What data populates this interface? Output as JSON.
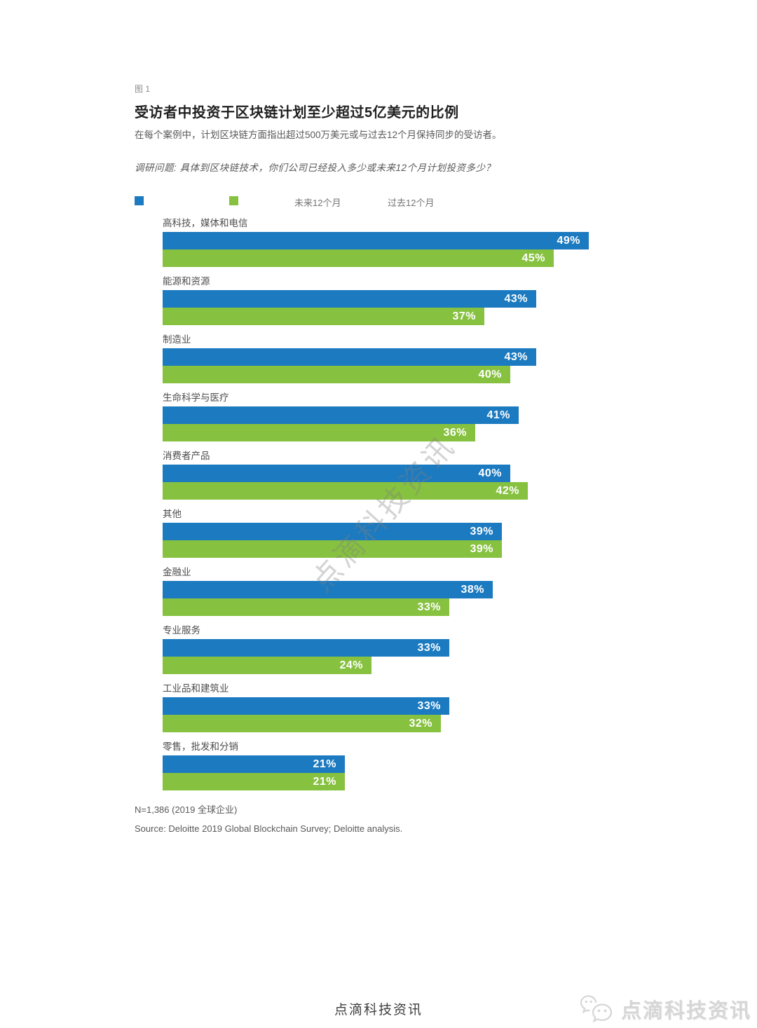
{
  "figure": {
    "fig_label": "图 1",
    "title": "受访者中投资于区块链计划至少超过5亿美元的比例",
    "subtitle": "在每个案例中，计划区块链方面指出超过500万美元或与过去12个月保持同步的受访者。",
    "survey_question": "调研问题: 具体到区块链技术，你们公司已经投入多少或未来12个月计划投资多少？",
    "note": "N=1,386 (2019 全球企业)",
    "source": "Source: Deloitte 2019 Global Blockchain Survey; Deloitte analysis."
  },
  "legend": {
    "future_label": "未来12个月",
    "past_label": "过去12个月"
  },
  "colors": {
    "future": "#1b7ac0",
    "past": "#86c13f"
  },
  "chart_data": {
    "type": "bar",
    "orientation": "horizontal",
    "title": "受访者中投资于区块链计划至少超过5亿美元的比例",
    "value_suffix": "%",
    "xlim": [
      0,
      50
    ],
    "grid": false,
    "legend_position": "top",
    "categories": [
      "高科技，媒体和电信",
      "能源和资源",
      "制造业",
      "生命科学与医疗",
      "消费者产品",
      "其他",
      "金融业",
      "专业服务",
      "工业品和建筑业",
      "零售，批发和分销"
    ],
    "series": [
      {
        "name": "未来12个月",
        "color": "#1b7ac0",
        "values": [
          49,
          43,
          43,
          41,
          40,
          39,
          38,
          33,
          33,
          21
        ]
      },
      {
        "name": "过去12个月",
        "color": "#86c13f",
        "values": [
          45,
          37,
          40,
          36,
          42,
          39,
          33,
          24,
          32,
          21
        ]
      }
    ]
  },
  "watermark": {
    "diagonal_text": "点滴科技资讯",
    "footer_center_text": "点滴科技资讯",
    "footer_right_text": "点滴科技资讯"
  }
}
